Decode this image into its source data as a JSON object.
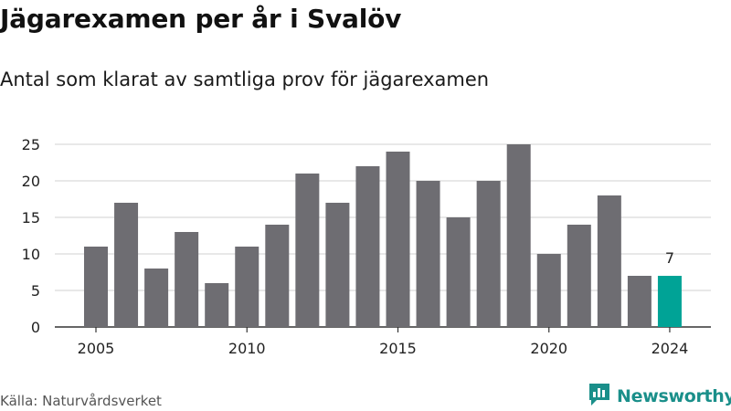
{
  "header": {
    "title": "Jägarexamen per år i Svalöv",
    "subtitle": "Antal som klarat av samtliga prov för jägarexamen"
  },
  "footer": {
    "source": "Källa: Naturvårdsverket",
    "brand": "Newsworthy",
    "brand_icon": "newsworthy-logo-icon"
  },
  "colors": {
    "bar": "#6e6d72",
    "highlight": "#00a396",
    "grid": "#d9d9d9",
    "axis": "#333333",
    "brand": "#1a8f8a"
  },
  "chart_data": {
    "type": "bar",
    "categories": [
      "2005",
      "2006",
      "2007",
      "2008",
      "2009",
      "2010",
      "2011",
      "2012",
      "2013",
      "2014",
      "2015",
      "2016",
      "2017",
      "2018",
      "2019",
      "2020",
      "2021",
      "2022",
      "2023",
      "2024"
    ],
    "values": [
      11,
      17,
      8,
      13,
      6,
      11,
      14,
      21,
      17,
      22,
      24,
      20,
      15,
      20,
      25,
      10,
      14,
      18,
      7,
      7
    ],
    "x_tick_labels": [
      "2005",
      "2010",
      "2015",
      "2020",
      "2024"
    ],
    "y_ticks": [
      0,
      5,
      10,
      15,
      20,
      25
    ],
    "ylim": [
      0,
      25
    ],
    "highlight": {
      "category": "2024",
      "label": "7"
    },
    "title": "Jägarexamen per år i Svalöv",
    "xlabel": "",
    "ylabel": "",
    "grid": true
  }
}
